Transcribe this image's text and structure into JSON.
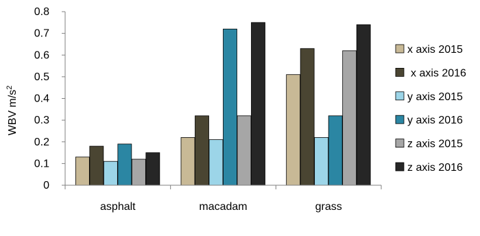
{
  "chart_data": {
    "type": "bar",
    "categories": [
      "asphalt",
      "macadam",
      "grass"
    ],
    "series": [
      {
        "name": "x axis 2015",
        "values": [
          0.13,
          0.22,
          0.51
        ],
        "color": "#c8b996"
      },
      {
        "name": "x axis 2016",
        "values": [
          0.18,
          0.32,
          0.63
        ],
        "color": "#4a4532"
      },
      {
        "name": "y axis 2015",
        "values": [
          0.11,
          0.21,
          0.22
        ],
        "color": "#9cd5e8"
      },
      {
        "name": "y axis 2016",
        "values": [
          0.19,
          0.72,
          0.32
        ],
        "color": "#2b86a3"
      },
      {
        "name": "z axis 2015",
        "values": [
          0.12,
          0.32,
          0.62
        ],
        "color": "#a6a6a6"
      },
      {
        "name": "z axis 2016",
        "values": [
          0.15,
          0.75,
          0.74
        ],
        "color": "#262626"
      }
    ],
    "ylabel_main": "WBV m/s",
    "ylabel_sup": "2",
    "ylim": [
      0,
      0.8
    ],
    "yticks": [
      "0",
      "0.1",
      "0.2",
      "0.3",
      "0.4",
      "0.5",
      "0.6",
      "0.7",
      "0.8"
    ],
    "grid": false,
    "legend_position": "right"
  }
}
